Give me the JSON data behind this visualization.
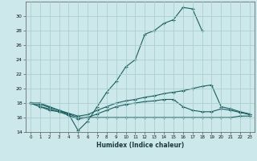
{
  "xlabel": "Humidex (Indice chaleur)",
  "xlim": [
    -0.5,
    23.5
  ],
  "ylim": [
    14,
    32
  ],
  "yticks": [
    14,
    16,
    18,
    20,
    22,
    24,
    26,
    28,
    30
  ],
  "xticks": [
    0,
    1,
    2,
    3,
    4,
    5,
    6,
    7,
    8,
    9,
    10,
    11,
    12,
    13,
    14,
    15,
    16,
    17,
    18,
    19,
    20,
    21,
    22,
    23
  ],
  "bg_color": "#cce8ea",
  "grid_color": "#a8cbcd",
  "line_color": "#1a5f5f",
  "lines": [
    {
      "x": [
        0,
        1,
        2,
        3,
        4,
        5,
        6,
        7,
        8,
        9,
        10,
        11,
        12,
        13,
        14,
        15,
        16,
        17,
        18
      ],
      "y": [
        18,
        18,
        17.5,
        17,
        16.5,
        14.2,
        15.5,
        17.5,
        19.5,
        21.0,
        23.0,
        24.0,
        27.5,
        28.0,
        29.0,
        29.5,
        31.2,
        31.0,
        28.0
      ]
    },
    {
      "x": [
        0,
        1,
        2,
        3,
        4,
        5,
        6,
        7,
        8,
        9,
        10,
        11,
        12,
        13,
        14,
        15,
        16,
        17,
        18,
        19,
        20,
        21,
        22,
        23
      ],
      "y": [
        18,
        17.8,
        17.4,
        17.0,
        16.6,
        16.2,
        16.4,
        17.0,
        17.5,
        18.0,
        18.3,
        18.5,
        18.8,
        19.0,
        19.3,
        19.5,
        19.7,
        20.0,
        20.3,
        20.5,
        17.5,
        17.2,
        16.8,
        16.5
      ]
    },
    {
      "x": [
        0,
        1,
        2,
        3,
        4,
        5,
        6,
        7,
        8,
        9,
        10,
        11,
        12,
        13,
        14,
        15,
        16,
        17,
        18,
        19,
        20,
        21,
        22,
        23
      ],
      "y": [
        18,
        17.5,
        17.0,
        16.8,
        16.5,
        16.0,
        16.0,
        16.0,
        16.0,
        16.0,
        16.0,
        16.0,
        16.0,
        16.0,
        16.0,
        16.0,
        16.0,
        16.0,
        16.0,
        16.0,
        16.0,
        16.0,
        16.2,
        16.2
      ]
    },
    {
      "x": [
        0,
        1,
        2,
        3,
        4,
        5,
        6,
        7,
        8,
        9,
        10,
        11,
        12,
        13,
        14,
        15,
        16,
        17,
        18,
        19,
        20,
        21,
        22,
        23
      ],
      "y": [
        18,
        17.5,
        17.2,
        16.8,
        16.3,
        15.8,
        16.0,
        16.5,
        17.0,
        17.5,
        17.8,
        18.0,
        18.2,
        18.3,
        18.5,
        18.5,
        17.5,
        17.0,
        16.8,
        16.8,
        17.2,
        17.0,
        16.7,
        16.4
      ]
    }
  ]
}
